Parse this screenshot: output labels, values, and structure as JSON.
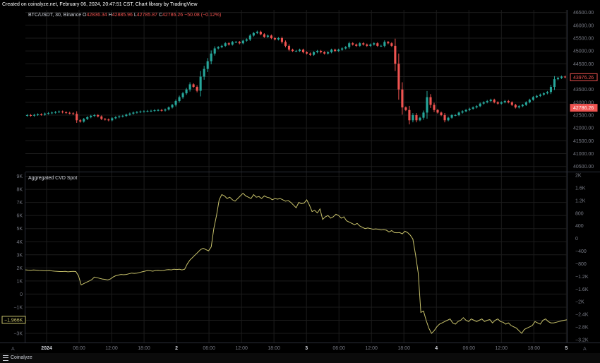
{
  "header": {
    "text": "Created on coinalyze.net, February 06, 2024, 20:47:51 CST, Chart library by TradingView"
  },
  "footer": {
    "brand": "Coinalyze",
    "menu_icon": "lines-icon"
  },
  "colors": {
    "up": "#26a69a",
    "down": "#ef5350",
    "cvd": "#c9c36b",
    "bg": "#000000",
    "grid": "#1c1c1c"
  },
  "chart_data": [
    {
      "type": "candlestick",
      "symbol": "BTC/USDT, 30, Binance",
      "legend": {
        "o_label": "O",
        "o": "42836.34",
        "h_label": "H",
        "h": "42885.96",
        "l_label": "L",
        "l": "42785.87",
        "c_label": "C",
        "c": "42786.26",
        "change": "−50.08 (−0.12%)"
      },
      "ylim": [
        40300,
        46600
      ],
      "right_axis_ticks": [
        "46500.00",
        "46000.00",
        "45500.00",
        "45000.00",
        "44500.00",
        "44000.00",
        "43500.00",
        "43000.00",
        "42500.00",
        "42000.00",
        "41500.00",
        "41000.00",
        "40500.00"
      ],
      "right_axis_tick_values": [
        46500,
        46000,
        45500,
        45000,
        44500,
        44000,
        43500,
        43000,
        42500,
        42000,
        41500,
        41000,
        40500
      ],
      "price_labels": [
        {
          "text": "43976.26",
          "value": 43976.26,
          "style": "outline"
        },
        {
          "text": "42786.26",
          "value": 42786.26,
          "style": "filled"
        }
      ],
      "close_series": [
        42500,
        42480,
        42510,
        42530,
        42520,
        42560,
        42580,
        42600,
        42620,
        42640,
        42610,
        42590,
        42570,
        42550,
        42300,
        42250,
        42350,
        42420,
        42470,
        42500,
        42450,
        42350,
        42330,
        42300,
        42380,
        42420,
        42450,
        42470,
        42520,
        42560,
        42600,
        42620,
        42640,
        42650,
        42660,
        42670,
        42690,
        42700,
        42680,
        42720,
        42800,
        42900,
        43050,
        43200,
        43350,
        43500,
        43700,
        43600,
        43450,
        44000,
        44300,
        44600,
        44900,
        45100,
        45150,
        45200,
        45300,
        45250,
        45350,
        45350,
        45300,
        45400,
        45450,
        45600,
        45700,
        45750,
        45650,
        45550,
        45600,
        45500,
        45450,
        45500,
        45350,
        45200,
        45050,
        45000,
        45000,
        45050,
        44950,
        44900,
        44850,
        44950,
        45000,
        44950,
        44900,
        44950,
        45050,
        45000,
        45050,
        45100,
        45150,
        45300,
        45250,
        45200,
        45300,
        45250,
        45200,
        45250,
        45300,
        45200,
        45200,
        45350,
        45300,
        45200,
        44500,
        43500,
        42800,
        42700,
        42300,
        42500,
        42300,
        42400,
        42600,
        43200,
        42900,
        42700,
        42600,
        42500,
        42300,
        42400,
        42500,
        42500,
        42600,
        42650,
        42700,
        42750,
        42800,
        42850,
        42950,
        43000,
        43050,
        43100,
        43000,
        42950,
        43000,
        43050,
        43000,
        42900,
        42800,
        42850,
        42900,
        43000,
        43100,
        43200,
        43250,
        43300,
        43350,
        43400,
        43600,
        43900,
        43950,
        44000,
        43976
      ]
    },
    {
      "type": "line",
      "title": "Aggregated CVD Spot",
      "ylim": [
        -3700,
        9300
      ],
      "left_axis_ticks": [
        "9K",
        "8K",
        "7K",
        "6K",
        "5K",
        "4K",
        "3K",
        "2K",
        "1K",
        "0",
        "−1K",
        "−2K",
        "−3K"
      ],
      "left_axis_tick_values": [
        9000,
        8000,
        7000,
        6000,
        5000,
        4000,
        3000,
        2000,
        1000,
        0,
        -1000,
        -2000,
        -3000
      ],
      "right_axis_ticks": [
        "2K",
        "1.6K",
        "1.2K",
        "800",
        "400",
        "0",
        "−400",
        "−800",
        "−1.2K",
        "−1.6K",
        "−2K",
        "−2.4K",
        "−2.8K",
        "−3.2K"
      ],
      "current_label": "−1.966K",
      "values": [
        1850,
        1830,
        1820,
        1840,
        1830,
        1810,
        1800,
        1790,
        1790,
        1800,
        1770,
        1750,
        1740,
        1720,
        1720,
        1730,
        1700,
        1720,
        1730,
        1720,
        1400,
        700,
        800,
        900,
        1000,
        1100,
        1300,
        1250,
        1200,
        1150,
        1120,
        1080,
        1150,
        1300,
        1400,
        1450,
        1500,
        1480,
        1500,
        1550,
        1600,
        1580,
        1600,
        1650,
        1700,
        1750,
        1800,
        1780,
        1750,
        1800,
        1820,
        1790,
        1800,
        1850,
        1870,
        1850,
        1900,
        1880,
        1900,
        1850,
        1900,
        2300,
        2600,
        2800,
        3000,
        3200,
        3400,
        3500,
        3400,
        3300,
        3600,
        5000,
        6000,
        7200,
        7600,
        7500,
        7300,
        7400,
        7200,
        7100,
        7300,
        7500,
        7700,
        7500,
        7400,
        7300,
        7600,
        7400,
        7450,
        7300,
        7500,
        7400,
        7350,
        7200,
        7300,
        7250,
        7300,
        7200,
        7100,
        7150,
        7000,
        6800,
        6600,
        7000,
        6900,
        6950,
        7200,
        6800,
        6300,
        6400,
        6200,
        6500,
        5700,
        5900,
        6000,
        5800,
        5900,
        6100,
        6000,
        5800,
        5900,
        5600,
        5500,
        5400,
        5300,
        5400,
        5200,
        5100,
        5000,
        5050,
        5000,
        4950,
        4980,
        4950,
        4900,
        4920,
        4880,
        4750,
        4850,
        4700,
        4680,
        4700,
        4600,
        4800,
        4700,
        4500,
        4200,
        3000,
        1600,
        -1400,
        -1300,
        -2000,
        -2600,
        -3000,
        -2800,
        -2500,
        -2300,
        -2200,
        -2100,
        -2000,
        -1900,
        -2200,
        -2300,
        -2100,
        -2000,
        -1800,
        -2000,
        -2100,
        -1900,
        -2000,
        -2100,
        -2000,
        -1900,
        -2100,
        -2000,
        -1950,
        -2200,
        -2000,
        -1900,
        -2100,
        -2150,
        -2300,
        -2200,
        -2400,
        -2500,
        -2600,
        -2800,
        -3000,
        -2700,
        -2600,
        -2500,
        -2400,
        -2100,
        -2200,
        -2300,
        -2000,
        -1900,
        -2100,
        -2200,
        -2200,
        -2150,
        -2100,
        -2050,
        -2000,
        -1966
      ]
    }
  ],
  "x_axis": {
    "labels": [
      "2024",
      "06:00",
      "12:00",
      "18:00",
      "2",
      "06:00",
      "12:00",
      "18:00",
      "3",
      "06:00",
      "12:00",
      "18:00",
      "4",
      "06:00",
      "12:00",
      "18:00",
      "5"
    ],
    "bold": [
      "2024",
      "2",
      "3",
      "4",
      "5"
    ],
    "positions": [
      0.0,
      0.06,
      0.12,
      0.18,
      0.24,
      0.3,
      0.36,
      0.42,
      0.48,
      0.54,
      0.6,
      0.66,
      0.72,
      0.78,
      0.84,
      0.9,
      0.96
    ]
  }
}
